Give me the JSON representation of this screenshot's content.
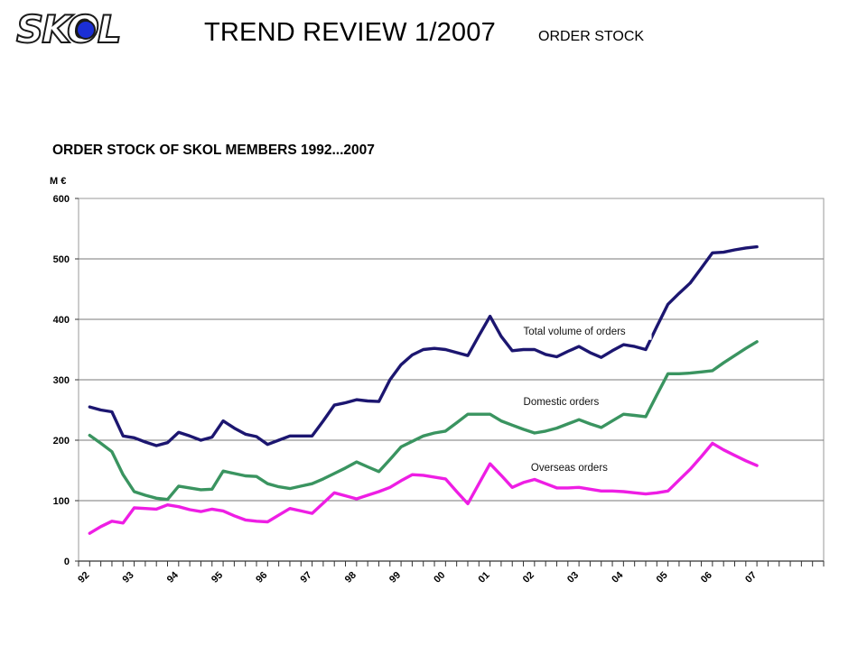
{
  "header": {
    "logo_text": "SKOL",
    "title": "TREND REVIEW 1/2007",
    "subtitle": "ORDER STOCK"
  },
  "chart_data": {
    "type": "line",
    "title": "ORDER STOCK OF SKOL MEMBERS 1992...2007",
    "ylabel": "M €",
    "xlabel": "",
    "ylim": [
      0,
      600
    ],
    "yticks": [
      0,
      100,
      200,
      300,
      400,
      500,
      600
    ],
    "grid": true,
    "x_tick_labels": [
      "92",
      "93",
      "94",
      "95",
      "96",
      "97",
      "98",
      "99",
      "00",
      "01",
      "02",
      "03",
      "04",
      "05",
      "06",
      "07"
    ],
    "x": [
      1992.0,
      1992.25,
      1992.5,
      1992.75,
      1993.0,
      1993.25,
      1993.5,
      1993.75,
      1994.0,
      1994.25,
      1994.5,
      1994.75,
      1995.0,
      1995.25,
      1995.5,
      1995.75,
      1996.0,
      1996.25,
      1996.5,
      1996.75,
      1997.0,
      1997.25,
      1997.5,
      1997.75,
      1998.0,
      1998.25,
      1998.5,
      1998.75,
      1999.0,
      1999.25,
      1999.5,
      1999.75,
      2000.0,
      2000.25,
      2000.5,
      2000.75,
      2001.0,
      2001.25,
      2001.5,
      2001.75,
      2002.0,
      2002.25,
      2002.5,
      2002.75,
      2003.0,
      2003.25,
      2003.5,
      2003.75,
      2004.0,
      2004.25,
      2004.5,
      2004.75,
      2005.0,
      2005.25,
      2005.5,
      2005.75,
      2006.0,
      2006.25,
      2006.5,
      2006.75,
      2007.0
    ],
    "series": [
      {
        "name": "Total volume of orders",
        "color": "#1c1670",
        "values": [
          255,
          250,
          247,
          207,
          204,
          197,
          191,
          196,
          213,
          207,
          200,
          205,
          232,
          220,
          210,
          206,
          193,
          200,
          207,
          207,
          207,
          232,
          258,
          262,
          267,
          265,
          264,
          300,
          325,
          341,
          350,
          352,
          350,
          345,
          340,
          373,
          405,
          372,
          348,
          350,
          350,
          342,
          338,
          347,
          355,
          345,
          337,
          348,
          358,
          355,
          350,
          388,
          425,
          443,
          460,
          485,
          510,
          511,
          515,
          518,
          520
        ]
      },
      {
        "name": "Domestic orders",
        "color": "#3a9460",
        "values": [
          208,
          195,
          181,
          143,
          115,
          109,
          104,
          102,
          124,
          121,
          118,
          119,
          149,
          145,
          141,
          140,
          128,
          123,
          120,
          124,
          128,
          136,
          145,
          154,
          164,
          156,
          148,
          168,
          189,
          198,
          207,
          212,
          215,
          229,
          243,
          243,
          243,
          232,
          225,
          218,
          212,
          215,
          220,
          227,
          234,
          227,
          221,
          232,
          243,
          241,
          239,
          275,
          310,
          310,
          311,
          313,
          315,
          328,
          340,
          352,
          363
        ]
      },
      {
        "name": "Overseas orders",
        "color": "#ee1ee4",
        "values": [
          46,
          57,
          66,
          63,
          88,
          87,
          86,
          93,
          90,
          85,
          82,
          86,
          83,
          75,
          68,
          66,
          65,
          76,
          87,
          83,
          79,
          96,
          113,
          108,
          103,
          109,
          115,
          122,
          133,
          143,
          142,
          139,
          136,
          115,
          95,
          128,
          161,
          142,
          122,
          130,
          135,
          128,
          121,
          121,
          122,
          119,
          116,
          116,
          115,
          113,
          111,
          113,
          116,
          134,
          152,
          173,
          195,
          184,
          175,
          166,
          158
        ]
      }
    ]
  }
}
